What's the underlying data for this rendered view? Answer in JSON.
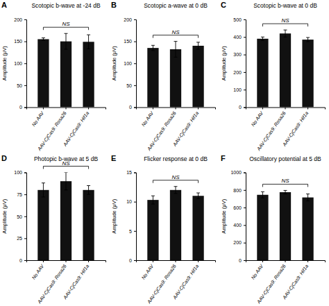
{
  "chart_data": [
    {
      "type": "bar",
      "title": "Scotopic b-wave at -24 dB",
      "ylabel": "Amplitude (μV)",
      "label": "A",
      "annotations": [
        "NS"
      ],
      "categories": [
        "No AAV",
        "AAV-CjCas9: Rosa26",
        "AAV-CjCas9: Hif1a"
      ],
      "values": [
        155,
        150,
        149
      ],
      "errors": [
        3,
        18,
        16
      ],
      "color": "#111111",
      "ylim": [
        0,
        200
      ],
      "yticks": [
        0,
        50,
        100,
        150,
        200
      ]
    },
    {
      "type": "bar",
      "title": "Scotopic a-wave at 0 dB",
      "ylabel": "Amplitude (μV)",
      "label": "B",
      "annotations": [
        "NS"
      ],
      "categories": [
        "No AAV",
        "AAV-CjCas9: Rosa26",
        "AAV-CjCas9: Hif1a"
      ],
      "values": [
        135,
        132,
        140
      ],
      "errors": [
        6,
        18,
        8
      ],
      "color": "#111111",
      "ylim": [
        0,
        200
      ],
      "yticks": [
        0,
        50,
        100,
        150,
        200
      ]
    },
    {
      "type": "bar",
      "title": "Scotopic b-wave at 0 dB",
      "ylabel": "Amplitude (μV)",
      "label": "C",
      "annotations": [
        "NS"
      ],
      "categories": [
        "No AAV",
        "AAV-CjCas9: Rosa26",
        "AAV-CjCas9: Hif1a"
      ],
      "values": [
        390,
        420,
        385
      ],
      "errors": [
        10,
        20,
        12
      ],
      "color": "#111111",
      "ylim": [
        0,
        500
      ],
      "yticks": [
        0,
        100,
        200,
        300,
        400,
        500
      ]
    },
    {
      "type": "bar",
      "title": "Photopic b-wave at 5 dB",
      "ylabel": "Amplitude (μV)",
      "label": "D",
      "annotations": [
        "NS"
      ],
      "categories": [
        "No AAV",
        "AAV-CjCas9: Rosa26",
        "AAV-CjCas9: Hif1a"
      ],
      "values": [
        80,
        90,
        80
      ],
      "errors": [
        8,
        10,
        5
      ],
      "color": "#111111",
      "ylim": [
        0,
        100
      ],
      "yticks": [
        0,
        25,
        50,
        75,
        100
      ]
    },
    {
      "type": "bar",
      "title": "Flicker response at 0 dB",
      "ylabel": "Amplitude (μV)",
      "label": "E",
      "annotations": [
        "NS"
      ],
      "categories": [
        "No AAV",
        "AAV-CjCas9: Rosa26",
        "AAV-CjCas9: Hif1a"
      ],
      "values": [
        10.3,
        12.0,
        11.0
      ],
      "errors": [
        0.7,
        0.6,
        0.5
      ],
      "color": "#111111",
      "ylim": [
        0,
        15
      ],
      "yticks": [
        0,
        5,
        10,
        15
      ]
    },
    {
      "type": "bar",
      "title": "Oscillatory potential at 5 dB",
      "ylabel": "Amplitude (μV)",
      "label": "F",
      "annotations": [
        "NS"
      ],
      "categories": [
        "No AAV",
        "AAV-CjCas9: Rosa26",
        "AAV-CjCas9: Hif1a"
      ],
      "values": [
        745,
        775,
        715
      ],
      "errors": [
        35,
        20,
        40
      ],
      "color": "#111111",
      "ylim": [
        0,
        1000
      ],
      "yticks": [
        0,
        200,
        400,
        600,
        800,
        1000
      ]
    }
  ]
}
